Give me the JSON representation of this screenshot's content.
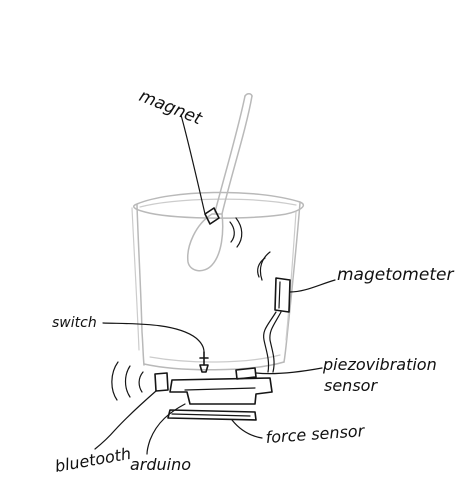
{
  "diagram": {
    "labels": {
      "magnet": "magnet",
      "magnetometer": "magetometer",
      "switch": "switch",
      "piezo_line1": "piezovibration",
      "piezo_line2": "sensor",
      "bluetooth": "bluetooth",
      "arduino": "arduino",
      "force_sensor": "force sensor"
    },
    "colors": {
      "ink": "#151515",
      "pencil": "#b9b9b9",
      "background": "#ffffff"
    }
  }
}
